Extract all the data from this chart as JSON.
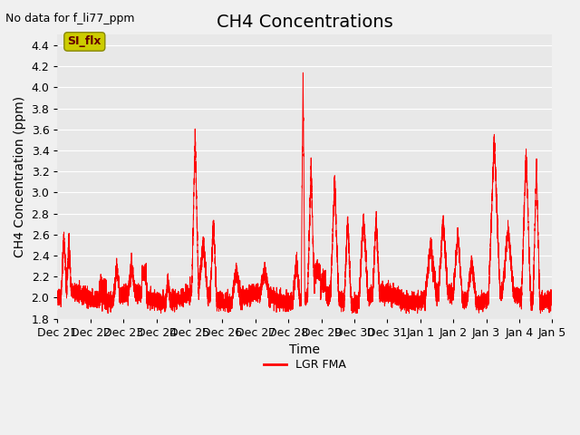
{
  "title": "CH4 Concentrations",
  "xlabel": "Time",
  "ylabel": "CH4 Concentration (ppm)",
  "top_left_text": "No data for f_li77_ppm",
  "legend_label": "LGR FMA",
  "legend_label2": "SI_flx",
  "ylim": [
    1.8,
    4.5
  ],
  "yticks": [
    1.8,
    2.0,
    2.2,
    2.4,
    2.6,
    2.8,
    3.0,
    3.2,
    3.4,
    3.6,
    3.8,
    4.0,
    4.2,
    4.4
  ],
  "line_color": "#ff0000",
  "bg_color": "#e8e8e8",
  "title_fontsize": 14,
  "label_fontsize": 10,
  "tick_fontsize": 9,
  "xtick_labels": [
    "Dec 21",
    "Dec 22",
    "Dec 23",
    "Dec 24",
    "Dec 25",
    "Dec 26",
    "Dec 27",
    "Dec 28",
    "Dec 29",
    "Dec 30",
    "Dec 31",
    "Jan 1",
    "Jan 2",
    "Jan 3",
    "Jan 4",
    "Jan 5"
  ],
  "si_flx_box_color": "#cccc00",
  "si_flx_text_color": "#660000"
}
